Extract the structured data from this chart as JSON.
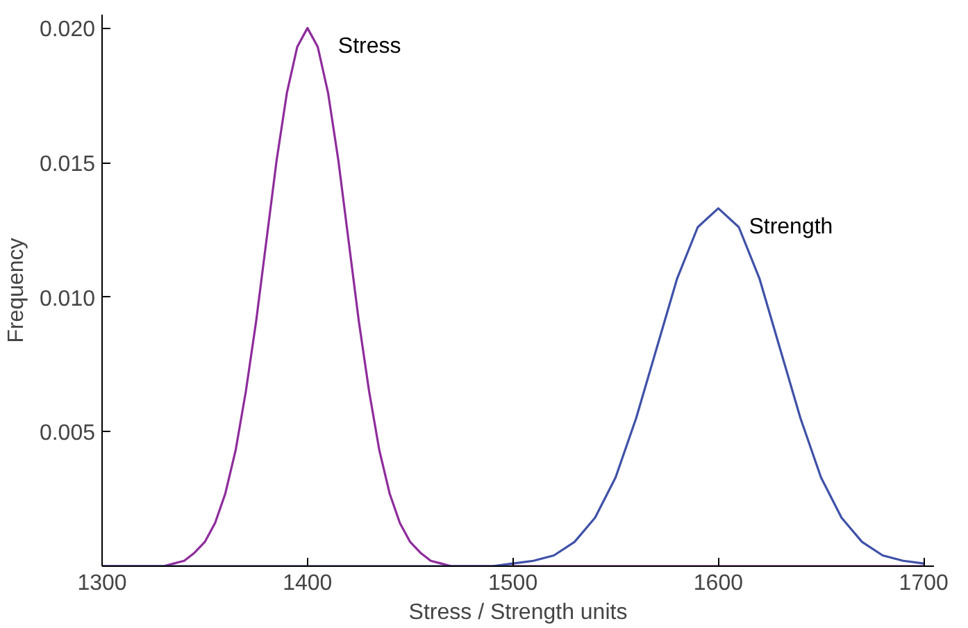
{
  "chart_data": {
    "type": "line",
    "xlabel": "Stress / Strength units",
    "ylabel": "Frequency",
    "xlim": [
      1300,
      1705
    ],
    "ylim": [
      0,
      0.0205
    ],
    "xticks": [
      1300,
      1400,
      1500,
      1600,
      1700
    ],
    "yticks": [
      {
        "value": 0.005,
        "label": "0.005"
      },
      {
        "value": 0.01,
        "label": "0.010"
      },
      {
        "value": 0.015,
        "label": "0.015"
      },
      {
        "value": 0.02,
        "label": "0.020"
      }
    ],
    "grid": false,
    "series": [
      {
        "name": "Stress",
        "color": "#8e2c9c",
        "x": [
          1300,
          1330,
          1335,
          1340,
          1345,
          1350,
          1355,
          1360,
          1365,
          1370,
          1375,
          1380,
          1385,
          1390,
          1395,
          1400,
          1405,
          1410,
          1415,
          1420,
          1425,
          1430,
          1435,
          1440,
          1445,
          1450,
          1455,
          1460,
          1465,
          1470,
          1700
        ],
        "values": [
          0,
          0,
          0.0001,
          0.0002,
          0.0005,
          0.0009,
          0.0016,
          0.0027,
          0.0043,
          0.0065,
          0.0091,
          0.0121,
          0.0151,
          0.0176,
          0.0193,
          0.02,
          0.0193,
          0.0176,
          0.0151,
          0.0121,
          0.0091,
          0.0065,
          0.0043,
          0.0027,
          0.0016,
          0.0009,
          0.0005,
          0.0002,
          0.0001,
          0,
          0
        ]
      },
      {
        "name": "Strength",
        "color": "#3f51a8",
        "x": [
          1300,
          1490,
          1500,
          1510,
          1520,
          1530,
          1540,
          1550,
          1560,
          1570,
          1580,
          1590,
          1600,
          1610,
          1620,
          1630,
          1640,
          1650,
          1660,
          1670,
          1680,
          1690,
          1700
        ],
        "values": [
          0,
          0,
          0.0001,
          0.0002,
          0.0004,
          0.0009,
          0.0018,
          0.0033,
          0.0055,
          0.0081,
          0.0107,
          0.0126,
          0.0133,
          0.0126,
          0.0107,
          0.0081,
          0.0055,
          0.0033,
          0.0018,
          0.0009,
          0.0004,
          0.0002,
          0.0001
        ]
      }
    ]
  }
}
